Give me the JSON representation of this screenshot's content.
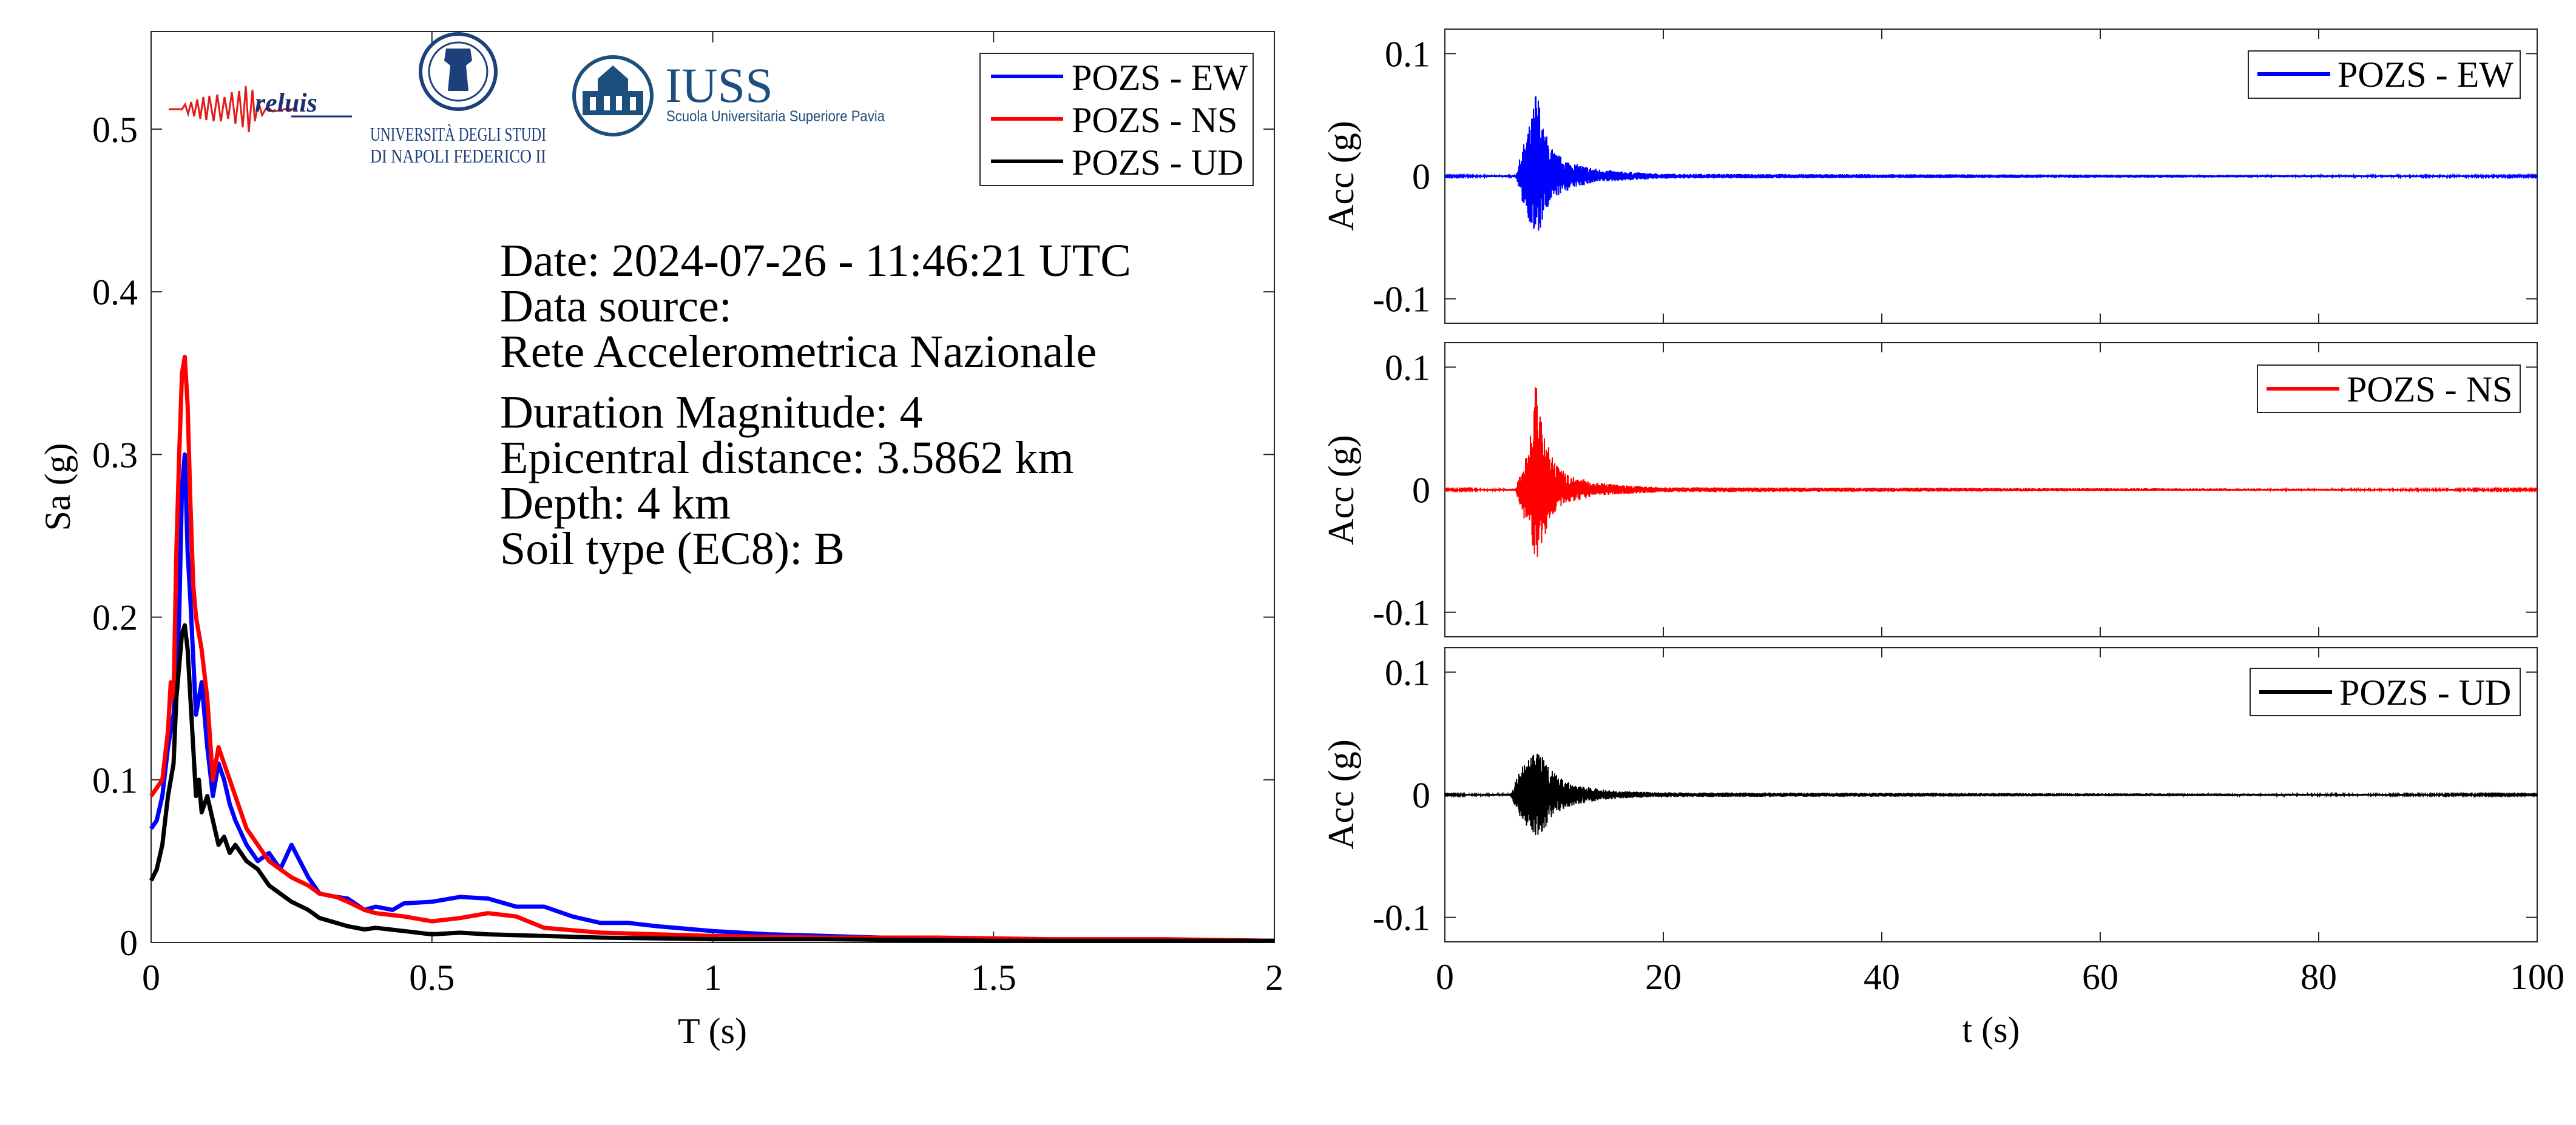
{
  "colors": {
    "ew": "#0000ff",
    "ns": "#ff0000",
    "ud": "#000000",
    "iuss": "#1d4f7c"
  },
  "logos": {
    "reluis": "reluis",
    "unina_line1": "UNIVERSITÀ DEGLI STUDI",
    "unina_line2": "DI NAPOLI FEDERICO II",
    "iuss_title": "IUSS",
    "iuss_sub": "Scuola Universitaria Superiore Pavia"
  },
  "info": {
    "date": "Date: 2024-07-26 - 11:46:21 UTC",
    "source_label": "Data source:",
    "source": "Rete Accelerometrica Nazionale",
    "magnitude": "Duration Magnitude: 4",
    "distance": "Epicentral distance: 3.5862 km",
    "depth": "Depth: 4 km",
    "soil": "Soil type (EC8): B"
  },
  "chart_data": [
    {
      "type": "line",
      "xlabel": "T (s)",
      "ylabel": "Sa (g)",
      "xlim": [
        0,
        2
      ],
      "ylim": [
        0,
        0.56
      ],
      "xticks": [
        0,
        0.5,
        1,
        1.5,
        2
      ],
      "xticklabels": [
        "0",
        "0.5",
        "1",
        "1.5",
        "2"
      ],
      "yticks": [
        0,
        0.1,
        0.2,
        0.3,
        0.4,
        0.5
      ],
      "yticklabels": [
        "0",
        "0.1",
        "0.2",
        "0.3",
        "0.4",
        "0.5"
      ],
      "legend_position": "top-right",
      "series": [
        {
          "name": "POZS - EW",
          "color": "#0000ff",
          "x": [
            0,
            0.01,
            0.02,
            0.03,
            0.04,
            0.05,
            0.055,
            0.06,
            0.065,
            0.07,
            0.08,
            0.09,
            0.1,
            0.11,
            0.12,
            0.13,
            0.14,
            0.15,
            0.17,
            0.19,
            0.21,
            0.23,
            0.25,
            0.28,
            0.3,
            0.33,
            0.35,
            0.38,
            0.4,
            0.43,
            0.45,
            0.5,
            0.55,
            0.6,
            0.65,
            0.7,
            0.75,
            0.8,
            0.85,
            0.9,
            1.0,
            1.1,
            1.2,
            1.3,
            1.5,
            1.7,
            2.0
          ],
          "y": [
            0.07,
            0.075,
            0.09,
            0.12,
            0.14,
            0.2,
            0.28,
            0.3,
            0.24,
            0.21,
            0.14,
            0.16,
            0.12,
            0.09,
            0.11,
            0.1,
            0.085,
            0.075,
            0.06,
            0.05,
            0.055,
            0.045,
            0.06,
            0.04,
            0.03,
            0.028,
            0.027,
            0.02,
            0.022,
            0.02,
            0.024,
            0.025,
            0.028,
            0.027,
            0.022,
            0.022,
            0.016,
            0.012,
            0.012,
            0.01,
            0.007,
            0.005,
            0.004,
            0.003,
            0.002,
            0.001,
            0.001
          ]
        },
        {
          "name": "POZS - NS",
          "color": "#ff0000",
          "x": [
            0,
            0.01,
            0.02,
            0.03,
            0.035,
            0.04,
            0.045,
            0.05,
            0.055,
            0.06,
            0.065,
            0.07,
            0.075,
            0.08,
            0.085,
            0.09,
            0.1,
            0.11,
            0.12,
            0.13,
            0.14,
            0.15,
            0.17,
            0.19,
            0.21,
            0.23,
            0.25,
            0.28,
            0.3,
            0.33,
            0.35,
            0.38,
            0.4,
            0.45,
            0.5,
            0.55,
            0.6,
            0.65,
            0.7,
            0.8,
            0.9,
            1.0,
            1.2,
            1.4,
            1.6,
            1.8,
            2.0
          ],
          "y": [
            0.09,
            0.095,
            0.1,
            0.13,
            0.16,
            0.15,
            0.24,
            0.3,
            0.35,
            0.36,
            0.33,
            0.27,
            0.22,
            0.2,
            0.19,
            0.18,
            0.15,
            0.1,
            0.12,
            0.11,
            0.1,
            0.09,
            0.07,
            0.06,
            0.05,
            0.045,
            0.04,
            0.035,
            0.03,
            0.028,
            0.025,
            0.02,
            0.018,
            0.016,
            0.013,
            0.015,
            0.018,
            0.016,
            0.009,
            0.006,
            0.005,
            0.004,
            0.003,
            0.003,
            0.002,
            0.002,
            0.001
          ]
        },
        {
          "name": "POZS - UD",
          "color": "#000000",
          "x": [
            0,
            0.01,
            0.02,
            0.03,
            0.035,
            0.04,
            0.045,
            0.05,
            0.055,
            0.06,
            0.065,
            0.07,
            0.075,
            0.08,
            0.085,
            0.09,
            0.1,
            0.11,
            0.12,
            0.13,
            0.14,
            0.15,
            0.17,
            0.19,
            0.21,
            0.23,
            0.25,
            0.28,
            0.3,
            0.33,
            0.35,
            0.38,
            0.4,
            0.45,
            0.5,
            0.55,
            0.6,
            0.7,
            0.8,
            1.0,
            1.2,
            1.5,
            2.0
          ],
          "y": [
            0.038,
            0.045,
            0.06,
            0.09,
            0.1,
            0.11,
            0.15,
            0.17,
            0.19,
            0.195,
            0.18,
            0.15,
            0.12,
            0.09,
            0.1,
            0.08,
            0.09,
            0.075,
            0.06,
            0.065,
            0.055,
            0.06,
            0.05,
            0.045,
            0.035,
            0.03,
            0.025,
            0.02,
            0.015,
            0.012,
            0.01,
            0.008,
            0.009,
            0.007,
            0.005,
            0.006,
            0.005,
            0.004,
            0.003,
            0.002,
            0.002,
            0.001,
            0.001
          ]
        }
      ]
    },
    {
      "type": "line",
      "xlabel": "",
      "ylabel": "Acc (g)",
      "xlim": [
        0,
        100
      ],
      "ylim": [
        -0.12,
        0.12
      ],
      "yticks": [
        -0.1,
        0,
        0.1
      ],
      "yticklabels": [
        "-0.1",
        "0",
        "0.1"
      ],
      "legend_position": "top-right",
      "series": [
        {
          "name": "POZS - EW",
          "color": "#0000ff",
          "t": [
            0,
            6.5,
            7,
            7.5,
            8,
            8.3,
            8.6,
            9,
            9.5,
            10,
            11,
            12,
            14,
            16,
            20,
            100
          ],
          "envelope_pos": [
            0.0005,
            0.001,
            0.02,
            0.035,
            0.05,
            0.072,
            0.065,
            0.04,
            0.03,
            0.02,
            0.014,
            0.01,
            0.006,
            0.004,
            0.002,
            0.0006
          ],
          "envelope_neg": [
            0.0005,
            0.001,
            0.02,
            0.03,
            0.045,
            0.055,
            0.05,
            0.035,
            0.028,
            0.018,
            0.013,
            0.009,
            0.005,
            0.004,
            0.002,
            0.0006
          ]
        },
        {
          "name": "POZS - NS",
          "color": "#ff0000",
          "t": [
            0,
            6.5,
            7,
            7.5,
            8,
            8.3,
            8.6,
            9,
            9.5,
            10,
            11,
            12,
            14,
            16,
            20,
            100
          ],
          "envelope_pos": [
            0.0005,
            0.001,
            0.02,
            0.035,
            0.055,
            0.09,
            0.07,
            0.045,
            0.035,
            0.022,
            0.014,
            0.01,
            0.006,
            0.004,
            0.002,
            0.0006
          ],
          "envelope_neg": [
            0.0005,
            0.001,
            0.02,
            0.03,
            0.045,
            0.06,
            0.055,
            0.04,
            0.03,
            0.02,
            0.013,
            0.009,
            0.005,
            0.004,
            0.002,
            0.0006
          ]
        },
        {
          "name": "POZS - UD",
          "color": "#000000",
          "t": [
            0,
            6,
            6.5,
            7,
            7.5,
            8,
            8.5,
            9,
            9.5,
            10,
            11,
            12,
            14,
            16,
            20,
            100
          ],
          "envelope_pos": [
            0.0005,
            0.001,
            0.012,
            0.022,
            0.028,
            0.032,
            0.038,
            0.03,
            0.024,
            0.018,
            0.012,
            0.008,
            0.005,
            0.003,
            0.002,
            0.0005
          ],
          "envelope_neg": [
            0.0005,
            0.001,
            0.012,
            0.02,
            0.026,
            0.03,
            0.04,
            0.03,
            0.022,
            0.016,
            0.011,
            0.008,
            0.005,
            0.003,
            0.002,
            0.0005
          ]
        }
      ]
    },
    {
      "xlabel": "t (s)",
      "xticks": [
        0,
        20,
        40,
        60,
        80,
        100
      ],
      "xticklabels": [
        "0",
        "20",
        "40",
        "60",
        "80",
        "100"
      ]
    }
  ]
}
